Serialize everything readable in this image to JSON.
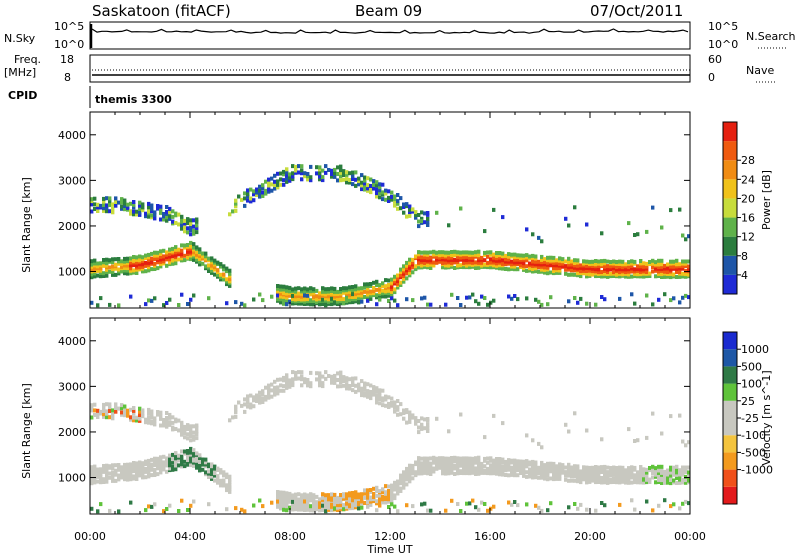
{
  "header": {
    "station": "Saskatoon (fitACF)",
    "beam": "Beam 09",
    "date": "07/Oct/2011"
  },
  "top_panels": {
    "nsky_label": "N.Sky",
    "nsearch_label": "N.Search",
    "nsky_ticks": [
      "10^5",
      "10^0"
    ],
    "nsearch_ticks": [
      "10^5",
      "10^0"
    ],
    "freq_label": "Freq.",
    "freq_unit": "[MHz]",
    "freq_ticks": [
      "18",
      "8"
    ],
    "nave_label": "Nave",
    "nave_ticks": [
      "60",
      "0"
    ],
    "cpid_label": "CPID",
    "cpid_value": "themis 3300"
  },
  "colors": {
    "power": [
      "#1f2bd6",
      "#1e56a8",
      "#2b7d3e",
      "#5fb24a",
      "#c7dc3c",
      "#f0c21a",
      "#f08c14",
      "#ef5a0f",
      "#e52010"
    ],
    "velocity": [
      "#e31a1c",
      "#f0501a",
      "#f39a1e",
      "#f4c43e",
      "#c8c8c0",
      "#c8c8c0",
      "#5fc33a",
      "#2f7a46",
      "#1d57a6",
      "#1a2bd0"
    ]
  },
  "chart_data": [
    {
      "type": "heatmap",
      "title": "Power",
      "xlabel": "Time UT",
      "ylabel": "Slant Range [km]",
      "x_ticks": [
        "00:00",
        "04:00",
        "08:00",
        "12:00",
        "16:00",
        "20:00",
        "00:00"
      ],
      "xlim": [
        0,
        24
      ],
      "ylim": [
        200,
        4500
      ],
      "y_ticks": [
        1000,
        2000,
        3000,
        4000
      ],
      "colorbar": {
        "label": "Power [dB]",
        "ticks": [
          4,
          8,
          12,
          16,
          20,
          24,
          28
        ],
        "range": [
          0,
          30
        ]
      },
      "features": [
        {
          "name": "main band",
          "t_hours": [
            0,
            2,
            4,
            6,
            8,
            10,
            12,
            13,
            14,
            16,
            18,
            20,
            22,
            24
          ],
          "range_km": [
            1100,
            1200,
            1500,
            700,
            500,
            500,
            700,
            1300,
            1300,
            1300,
            1200,
            1100,
            1100,
            1100
          ],
          "power_db": 24
        },
        {
          "name": "upper band",
          "t_hours": [
            0,
            1,
            2,
            3,
            4,
            6,
            8,
            10,
            12,
            13
          ],
          "range_km": [
            2500,
            2500,
            2400,
            2300,
            2000,
            2600,
            3200,
            3200,
            2700,
            2200
          ],
          "power_db": 10
        }
      ]
    },
    {
      "type": "heatmap",
      "title": "Velocity",
      "xlabel": "Time UT",
      "ylabel": "Slant Range [km]",
      "x_ticks": [
        "00:00",
        "04:00",
        "08:00",
        "12:00",
        "16:00",
        "20:00",
        "00:00"
      ],
      "xlim": [
        0,
        24
      ],
      "ylim": [
        200,
        4500
      ],
      "y_ticks": [
        1000,
        2000,
        3000,
        4000
      ],
      "colorbar": {
        "label": "Velocity [m s^-1]",
        "ticks": [
          1000,
          500,
          100,
          25,
          -25,
          -100,
          -500,
          -1000
        ]
      },
      "features": [
        {
          "name": "ground scatter band",
          "t_hours": [
            0,
            2,
            4,
            6,
            8,
            10,
            12,
            13,
            14,
            16,
            18,
            20,
            22,
            24
          ],
          "range_km": [
            1100,
            1200,
            1500,
            700,
            500,
            500,
            700,
            1300,
            1300,
            1300,
            1200,
            1100,
            1100,
            1100
          ],
          "velocity_ms": 0
        },
        {
          "name": "upper scatter",
          "t_hours": [
            0,
            1,
            2,
            3,
            4,
            6,
            8,
            10,
            12,
            13
          ],
          "range_km": [
            2500,
            2500,
            2400,
            2300,
            2000,
            2600,
            3200,
            3200,
            2700,
            2200
          ],
          "velocity_ms": 0
        }
      ]
    }
  ]
}
